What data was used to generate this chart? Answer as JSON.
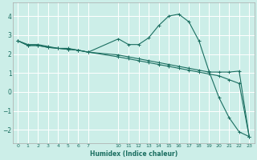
{
  "xlabel": "Humidex (Indice chaleur)",
  "bg_color": "#cceee8",
  "grid_color": "#ffffff",
  "line_color": "#1a6e60",
  "xlim": [
    -0.5,
    23.5
  ],
  "ylim": [
    -2.7,
    4.7
  ],
  "xticks": [
    0,
    1,
    2,
    3,
    4,
    5,
    6,
    7,
    10,
    11,
    12,
    13,
    14,
    15,
    16,
    17,
    18,
    19,
    20,
    21,
    22,
    23
  ],
  "yticks": [
    -2,
    -1,
    0,
    1,
    2,
    3,
    4
  ],
  "line1_x": [
    0,
    1,
    2,
    3,
    4,
    5,
    6,
    7,
    10,
    11,
    12,
    13,
    14,
    15,
    16,
    17,
    18,
    19,
    20,
    21,
    22,
    23
  ],
  "line1_y": [
    2.7,
    2.5,
    2.5,
    2.4,
    2.3,
    2.3,
    2.2,
    2.1,
    2.8,
    2.5,
    2.5,
    2.85,
    3.5,
    4.0,
    4.1,
    3.7,
    2.7,
    1.1,
    -0.3,
    -1.35,
    -2.1,
    -2.35
  ],
  "line2_x": [
    0,
    1,
    2,
    3,
    4,
    5,
    6,
    7,
    10,
    11,
    12,
    13,
    14,
    15,
    16,
    17,
    18,
    19,
    20,
    21,
    22,
    23
  ],
  "line2_y": [
    2.7,
    2.45,
    2.45,
    2.35,
    2.3,
    2.25,
    2.2,
    2.1,
    1.85,
    1.75,
    1.65,
    1.55,
    1.45,
    1.35,
    1.25,
    1.15,
    1.05,
    0.95,
    0.85,
    0.65,
    0.45,
    -2.35
  ],
  "line3_x": [
    0,
    1,
    2,
    3,
    4,
    5,
    6,
    7,
    10,
    11,
    12,
    13,
    14,
    15,
    16,
    17,
    18,
    19,
    20,
    21,
    22,
    23
  ],
  "line3_y": [
    2.7,
    2.45,
    2.45,
    2.35,
    2.3,
    2.25,
    2.2,
    2.1,
    1.95,
    1.85,
    1.75,
    1.65,
    1.55,
    1.45,
    1.35,
    1.25,
    1.15,
    1.05,
    1.05,
    1.05,
    1.1,
    -2.35
  ]
}
